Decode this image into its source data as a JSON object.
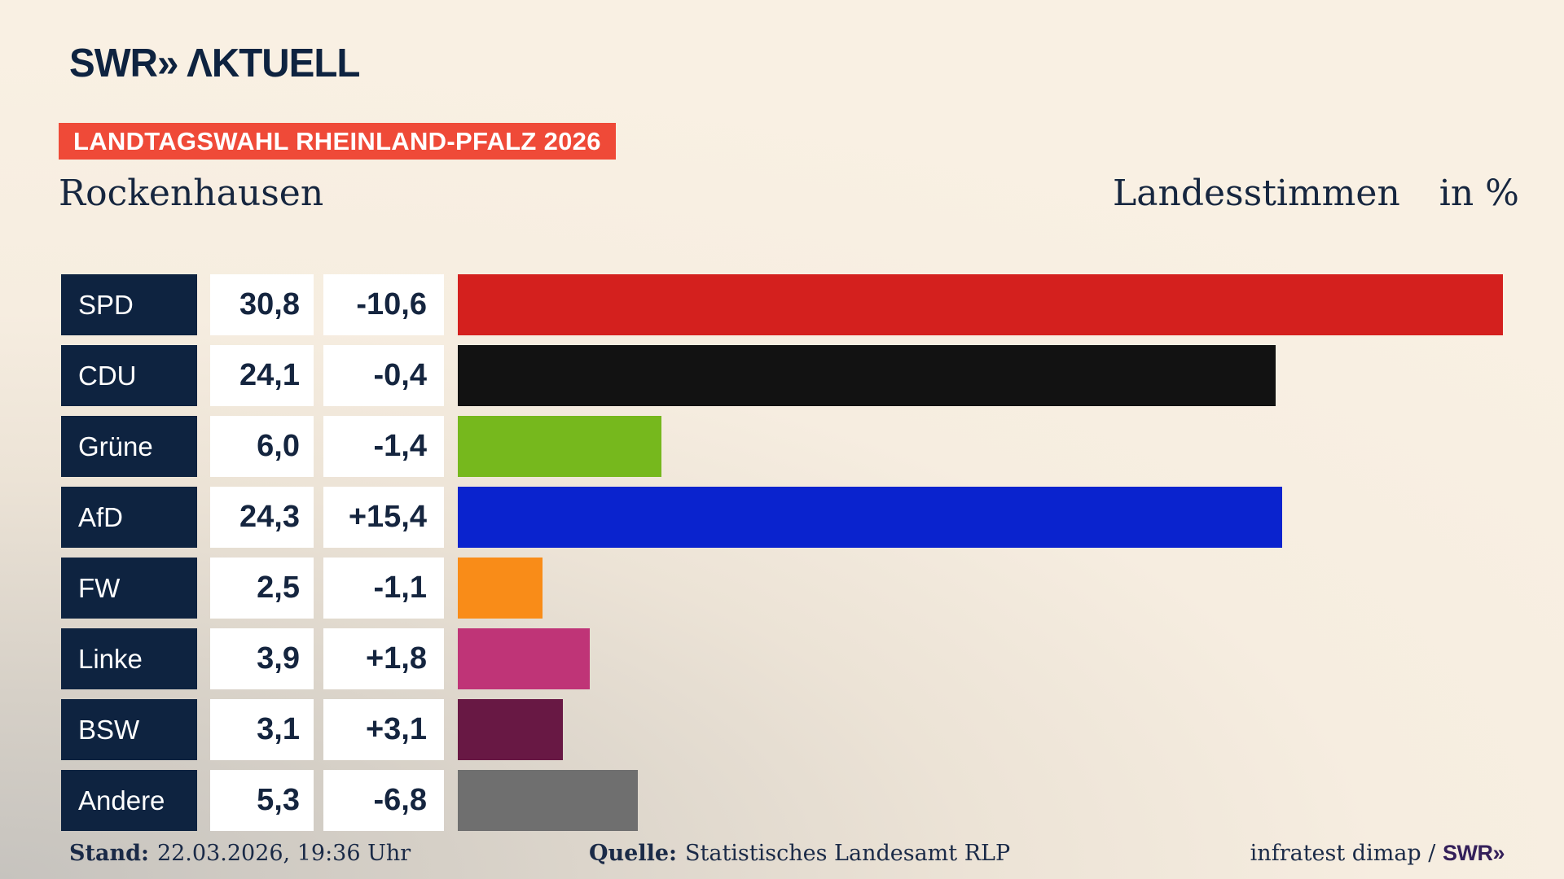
{
  "header": {
    "logo_brand": "SWR",
    "logo_chevrons": "»",
    "logo_suffix": "ΛKTUELL",
    "banner": "LANDTAGSWAHL RHEINLAND-PFALZ 2026",
    "region": "Rockenhausen",
    "measure": "Landesstimmen",
    "unit": "in %"
  },
  "chart_data": {
    "type": "bar",
    "orientation": "horizontal",
    "title": "Landesstimmen in %",
    "categories": [
      "SPD",
      "CDU",
      "Grüne",
      "AfD",
      "FW",
      "Linke",
      "BSW",
      "Andere"
    ],
    "values": [
      30.8,
      24.1,
      6.0,
      24.3,
      2.5,
      3.9,
      3.1,
      5.3
    ],
    "changes": [
      -10.6,
      -0.4,
      -1.4,
      15.4,
      -1.1,
      1.8,
      3.1,
      -6.8
    ],
    "value_labels": [
      "30,8",
      "24,1",
      "6,0",
      "24,3",
      "2,5",
      "3,9",
      "3,1",
      "5,3"
    ],
    "change_labels": [
      "-10,6",
      "-0,4",
      "-1,4",
      "+15,4",
      "-1,1",
      "+1,8",
      "+3,1",
      "-6,8"
    ],
    "bar_colors": [
      "#d4201e",
      "#121212",
      "#76b81d",
      "#0a23ce",
      "#f98c18",
      "#bf3477",
      "#681844",
      "#6f6f6f"
    ],
    "xlim": [
      0,
      32.6
    ],
    "grid": false,
    "legend": false
  },
  "footer": {
    "stand_label": "Stand:",
    "stand_value": "22.03.2026, 19:36 Uhr",
    "quelle_label": "Quelle:",
    "quelle_value": "Statistisches Landesamt RLP",
    "credit_prefix": "infratest dimap / ",
    "credit_brand": "SWR»"
  },
  "colors": {
    "navy": "#0e2340",
    "banner_background": "#ef4a38",
    "banner_text": "#ffffff",
    "background_top": "#f9f0e3",
    "background_bottom_left": "#c6c3be"
  }
}
